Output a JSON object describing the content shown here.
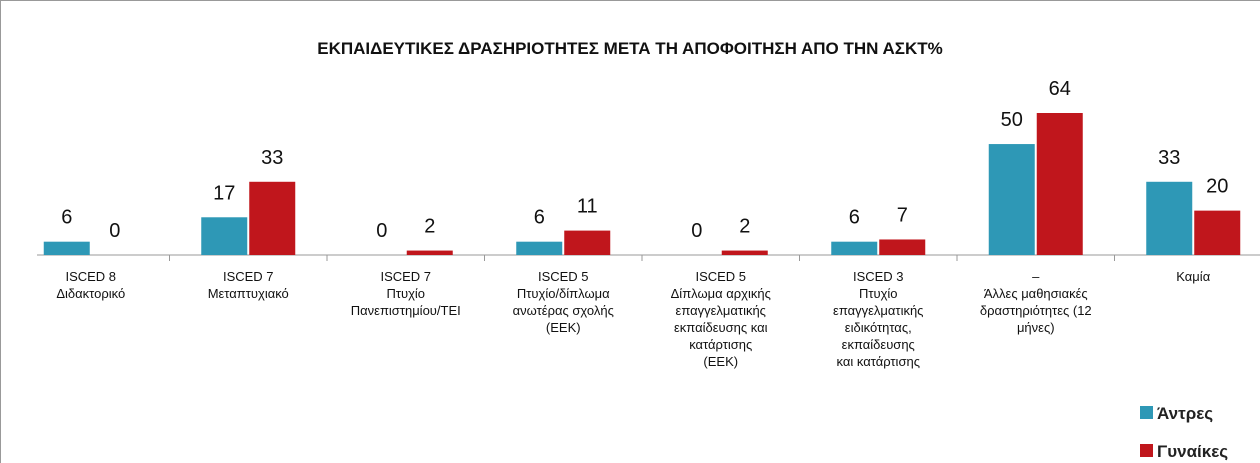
{
  "chart_data": {
    "type": "bar",
    "title": "ΕΚΠΑΙΔΕΥΤΙΚΕΣ ΔΡΑΣΗΡΙΟΤΗΤΕΣ ΜΕΤΑ ΤΗ ΑΠΟΦΟΙΤΗΣΗ ΑΠΟ ΤΗΝ ΑΣΚΤ%",
    "categories": [
      "ISCED 8\nΔιδακτορικό",
      "ISCED 7\nΜεταπτυχιακό",
      "ISCED 7\nΠτυχίο\nΠανεπιστημίου/ΤΕΙ",
      "ISCED 5\nΠτυχίο/δίπλωμα\nανωτέρας σχολής\n(ΕΕΚ)",
      "ISCED 5\nΔίπλωμα αρχικής\nεπαγγελματικής\nεκπαίδευσης και\nκατάρτισης\n(ΕΕΚ)",
      "ISCED 3\nΠτυχίο\nεπαγγελματικής\nειδικότητας,\nεκπαίδευσης\nκαι κατάρτισης",
      "–\nΆλλες μαθησιακές\nδραστηριότητες (12\nμήνες)",
      "Καμία"
    ],
    "series": [
      {
        "name": "Άντρες",
        "color": "#2e98b6",
        "values": [
          6,
          17,
          0,
          6,
          0,
          6,
          50,
          33
        ]
      },
      {
        "name": "Γυναίκες",
        "color": "#c0161c",
        "values": [
          0,
          33,
          2,
          11,
          2,
          7,
          64,
          20
        ]
      }
    ]
  }
}
